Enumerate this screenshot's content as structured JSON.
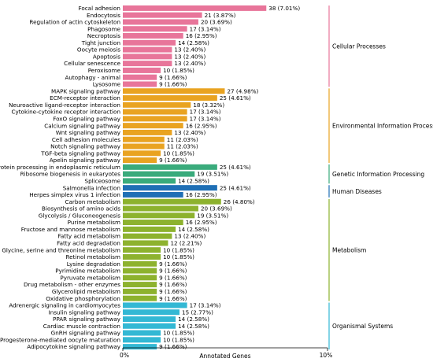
{
  "chart_data": {
    "type": "bar",
    "orientation": "horizontal",
    "xlabel": "Annotated Genes",
    "xlim": [
      0,
      10
    ],
    "x_tick_labels": [
      "0%",
      "10%"
    ],
    "grid": false,
    "legend": "none",
    "groups": [
      {
        "name": "Cellular Processes",
        "color": "#e8759a",
        "bars": [
          {
            "term": "Focal adhesion",
            "count": 38,
            "percent": 7.01,
            "label": "38 (7.01%)"
          },
          {
            "term": "Endocytosis",
            "count": 21,
            "percent": 3.87,
            "label": "21 (3.87%)"
          },
          {
            "term": "Regulation of actin cytoskeleton",
            "count": 20,
            "percent": 3.69,
            "label": "20 (3.69%)"
          },
          {
            "term": "Phagosome",
            "count": 17,
            "percent": 3.14,
            "label": "17 (3.14%)"
          },
          {
            "term": "Necroptosis",
            "count": 16,
            "percent": 2.95,
            "label": "16 (2.95%)"
          },
          {
            "term": "Tight junction",
            "count": 14,
            "percent": 2.58,
            "label": "14 (2.58%)"
          },
          {
            "term": "Oocyte meiosis",
            "count": 13,
            "percent": 2.4,
            "label": "13 (2.40%)"
          },
          {
            "term": "Apoptosis",
            "count": 13,
            "percent": 2.4,
            "label": "13 (2.40%)"
          },
          {
            "term": "Cellular senescence",
            "count": 13,
            "percent": 2.4,
            "label": "13 (2.40%)"
          },
          {
            "term": "Peroxisome",
            "count": 10,
            "percent": 1.85,
            "label": "10 (1.85%)"
          },
          {
            "term": "Autophagy - animal",
            "count": 9,
            "percent": 1.66,
            "label": "9 (1.66%)"
          },
          {
            "term": "Lysosome",
            "count": 9,
            "percent": 1.66,
            "label": "9 (1.66%)"
          }
        ]
      },
      {
        "name": "Environmental Information Processing",
        "color": "#e9a321",
        "bars": [
          {
            "term": "MAPK signaling pathway",
            "count": 27,
            "percent": 4.98,
            "label": "27 (4.98%)"
          },
          {
            "term": "ECM-receptor interaction",
            "count": 25,
            "percent": 4.61,
            "label": "25 (4.61%)"
          },
          {
            "term": "Neuroactive ligand-receptor interaction",
            "count": 18,
            "percent": 3.32,
            "label": "18 (3.32%)"
          },
          {
            "term": "Cytokine-cytokine receptor interaction",
            "count": 17,
            "percent": 3.14,
            "label": "17 (3.14%)"
          },
          {
            "term": "FoxO signaling pathway",
            "count": 17,
            "percent": 3.14,
            "label": "17 (3.14%)"
          },
          {
            "term": "Calcium signaling pathway",
            "count": 16,
            "percent": 2.95,
            "label": "16 (2.95%)"
          },
          {
            "term": "Wnt signaling pathway",
            "count": 13,
            "percent": 2.4,
            "label": "13 (2.40%)"
          },
          {
            "term": "Cell adhesion molecules",
            "count": 11,
            "percent": 2.03,
            "label": "11 (2.03%)"
          },
          {
            "term": "Notch signaling pathway",
            "count": 11,
            "percent": 2.03,
            "label": "11 (2.03%)"
          },
          {
            "term": "TGF-beta signaling pathway",
            "count": 10,
            "percent": 1.85,
            "label": "10 (1.85%)"
          },
          {
            "term": "Apelin signaling pathway",
            "count": 9,
            "percent": 1.66,
            "label": "9 (1.66%)"
          }
        ]
      },
      {
        "name": "Genetic Information Processing",
        "color": "#3aab7c",
        "bars": [
          {
            "term": "Protein processing in endoplasmic reticulum",
            "count": 25,
            "percent": 4.61,
            "label": "25 (4.61%)"
          },
          {
            "term": "Ribosome biogenesis in eukaryotes",
            "count": 19,
            "percent": 3.51,
            "label": "19 (3.51%)"
          },
          {
            "term": "Spliceosome",
            "count": 14,
            "percent": 2.58,
            "label": "14 (2.58%)"
          }
        ]
      },
      {
        "name": "Human Diseases",
        "color": "#1f6fb5",
        "bars": [
          {
            "term": "Salmonella infection",
            "count": 25,
            "percent": 4.61,
            "label": "25 (4.61%)"
          },
          {
            "term": "Herpes simplex virus 1 infection",
            "count": 16,
            "percent": 2.95,
            "label": "16 (2.95%)"
          }
        ]
      },
      {
        "name": "Metabolism",
        "color": "#8db22e",
        "bars": [
          {
            "term": "Carbon metabolism",
            "count": 26,
            "percent": 4.8,
            "label": "26 (4.80%)"
          },
          {
            "term": "Biosynthesis of amino acids",
            "count": 20,
            "percent": 3.69,
            "label": "20 (3.69%)"
          },
          {
            "term": "Glycolysis / Gluconeogenesis",
            "count": 19,
            "percent": 3.51,
            "label": "19 (3.51%)"
          },
          {
            "term": "Purine metabolism",
            "count": 16,
            "percent": 2.95,
            "label": "16 (2.95%)"
          },
          {
            "term": "Fructose and mannose metabolism",
            "count": 14,
            "percent": 2.58,
            "label": "14 (2.58%)"
          },
          {
            "term": "Fatty acid metabolism",
            "count": 13,
            "percent": 2.4,
            "label": "13 (2.40%)"
          },
          {
            "term": "Fatty acid degradation",
            "count": 12,
            "percent": 2.21,
            "label": "12 (2.21%)"
          },
          {
            "term": "Glycine, serine and threonine metabolism",
            "count": 10,
            "percent": 1.85,
            "label": "10 (1.85%)"
          },
          {
            "term": "Retinol metabolism",
            "count": 10,
            "percent": 1.85,
            "label": "10 (1.85%)"
          },
          {
            "term": "Lysine degradation",
            "count": 9,
            "percent": 1.66,
            "label": "9 (1.66%)"
          },
          {
            "term": "Pyrimidine metabolism",
            "count": 9,
            "percent": 1.66,
            "label": "9 (1.66%)"
          },
          {
            "term": "Pyruvate metabolism",
            "count": 9,
            "percent": 1.66,
            "label": "9 (1.66%)"
          },
          {
            "term": "Drug metabolism - other enzymes",
            "count": 9,
            "percent": 1.66,
            "label": "9 (1.66%)"
          },
          {
            "term": "Glycerolipid metabolism",
            "count": 9,
            "percent": 1.66,
            "label": "9 (1.66%)"
          },
          {
            "term": "Oxidative phosphorylation",
            "count": 9,
            "percent": 1.66,
            "label": "9 (1.66%)"
          }
        ]
      },
      {
        "name": "Organismal Systems",
        "color": "#33b8d4",
        "bars": [
          {
            "term": "Adrenergic signaling in cardiomyocytes",
            "count": 17,
            "percent": 3.14,
            "label": "17 (3.14%)"
          },
          {
            "term": "Insulin signaling pathway",
            "count": 15,
            "percent": 2.77,
            "label": "15 (2.77%)"
          },
          {
            "term": "PPAR signaling pathway",
            "count": 14,
            "percent": 2.58,
            "label": "14 (2.58%)"
          },
          {
            "term": "Cardiac muscle contraction",
            "count": 14,
            "percent": 2.58,
            "label": "14 (2.58%)"
          },
          {
            "term": "GnRH signaling pathway",
            "count": 10,
            "percent": 1.85,
            "label": "10 (1.85%)"
          },
          {
            "term": "Progesterone-mediated oocyte maturation",
            "count": 10,
            "percent": 1.85,
            "label": "10 (1.85%)"
          },
          {
            "term": "Adipocytokine signaling pathway",
            "count": 9,
            "percent": 1.66,
            "label": "9 (1.66%)"
          }
        ]
      }
    ]
  }
}
